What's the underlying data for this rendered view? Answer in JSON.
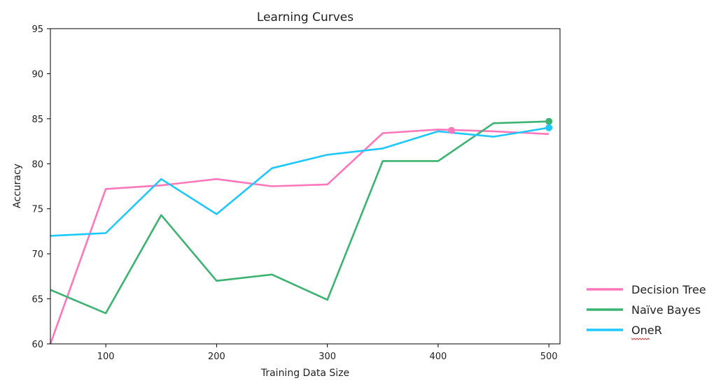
{
  "chart_data": {
    "type": "line",
    "title": "Learning Curves",
    "xlabel": "Training Data Size",
    "ylabel": "Accuracy",
    "xlim": [
      50,
      510
    ],
    "ylim": [
      60,
      95
    ],
    "xticks": [
      100,
      200,
      300,
      400,
      500
    ],
    "yticks": [
      60,
      65,
      70,
      75,
      80,
      85,
      90,
      95
    ],
    "grid": false,
    "legend_position": "outside-right-bottom",
    "x": [
      50,
      100,
      150,
      200,
      250,
      300,
      350,
      400,
      450,
      500
    ],
    "series": [
      {
        "name": "Decision Tree",
        "color": "#ff77bb",
        "values": [
          60.0,
          77.2,
          77.6,
          78.3,
          77.5,
          77.7,
          83.4,
          83.8,
          83.6,
          83.3
        ],
        "marker": {
          "x": 412,
          "y": 83.7
        }
      },
      {
        "name": "Naïve Bayes",
        "color": "#3cb371",
        "values": [
          66.0,
          63.4,
          74.3,
          67.0,
          67.7,
          64.9,
          80.3,
          80.3,
          84.5,
          84.7
        ],
        "marker": {
          "x": 500,
          "y": 84.7
        }
      },
      {
        "name": "OneR",
        "color": "#1ec8ff",
        "values": [
          72.0,
          72.3,
          78.3,
          74.4,
          79.5,
          81.0,
          81.7,
          83.6,
          83.0,
          84.0
        ],
        "marker": {
          "x": 500,
          "y": 84.0
        }
      }
    ]
  }
}
